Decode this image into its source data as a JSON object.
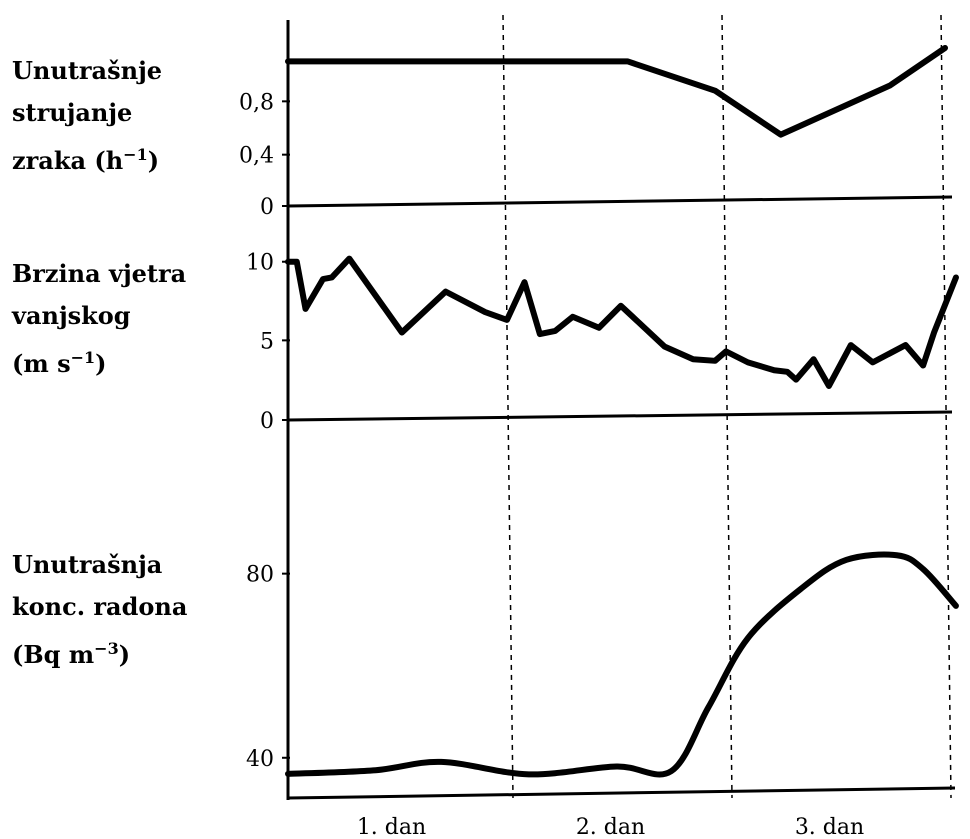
{
  "chart_data": [
    {
      "type": "line",
      "label_lines": [
        "Unutrašnje",
        "strujanje"
      ],
      "label_last": "zraka (h",
      "label_sup": "−1",
      "label_end": ")",
      "y_ticks": [
        "0,8",
        "0,4",
        "0"
      ],
      "ylim": [
        0,
        1.2
      ],
      "x": [
        0,
        0.5,
        1.0,
        1.55,
        1.95,
        2.25,
        2.75,
        3.0
      ],
      "y": [
        1.1,
        1.1,
        1.1,
        1.1,
        0.88,
        0.55,
        0.92,
        1.2
      ]
    },
    {
      "type": "line",
      "label_lines": [
        "Brzina vjetra",
        "vanjskog"
      ],
      "label_last": "(m s",
      "label_sup": "−1",
      "label_end": ")",
      "y_ticks": [
        "10",
        "5",
        "0"
      ],
      "ylim": [
        0,
        11
      ],
      "x": [
        0,
        0.04,
        0.08,
        0.16,
        0.2,
        0.28,
        0.52,
        0.72,
        0.9,
        1.0,
        1.08,
        1.15,
        1.22,
        1.3,
        1.42,
        1.52,
        1.72,
        1.85,
        1.95,
        2.0,
        2.1,
        2.22,
        2.28,
        2.32,
        2.4,
        2.47,
        2.57,
        2.67,
        2.82,
        2.9,
        2.95,
        3.05
      ],
      "y": [
        10,
        10,
        7,
        8.9,
        9,
        10.2,
        5.5,
        8.1,
        6.8,
        6.3,
        8.7,
        5.4,
        5.6,
        6.5,
        5.8,
        7.2,
        4.6,
        3.8,
        3.7,
        4.3,
        3.6,
        3.1,
        3.0,
        2.5,
        3.8,
        2.1,
        4.7,
        3.6,
        4.7,
        3.4,
        5.5,
        9.0
      ]
    },
    {
      "type": "line",
      "label_lines": [
        "Unutrašnja",
        "konc. radona"
      ],
      "label_last": "(Bq m",
      "label_sup": "−3",
      "label_end": ")",
      "y_ticks": [
        "80",
        "40"
      ],
      "ylim": [
        33,
        96
      ],
      "x": [
        0,
        0.4,
        0.7,
        1.1,
        1.5,
        1.75,
        1.92,
        2.1,
        2.35,
        2.55,
        2.78,
        2.9,
        3.05
      ],
      "y": [
        36.5,
        37.3,
        39.1,
        36.4,
        38.1,
        37.1,
        51,
        66,
        77,
        83,
        84,
        81,
        73
      ]
    }
  ],
  "x_axis": {
    "categories": [
      "1. dan",
      "2. dan",
      "3. dan"
    ]
  }
}
